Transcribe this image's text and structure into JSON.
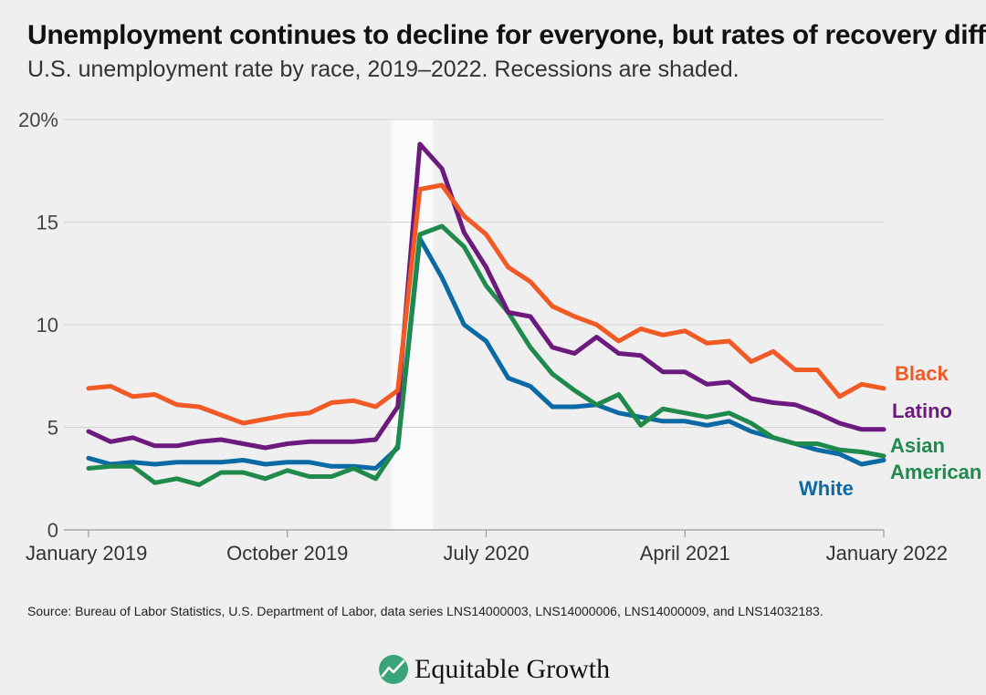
{
  "header": {
    "title": "Unemployment continues to decline for everyone, but rates of recovery differ",
    "subtitle": "U.S. unemployment rate by race, 2019–2022. Recessions are shaded."
  },
  "footer": {
    "source": "Source: Bureau of Labor Statistics, U.S. Department of Labor, data series LNS14000003, LNS14000006, LNS14000009, and LNS14032183.",
    "logo_text": "Equitable Growth"
  },
  "colors": {
    "Black": "#f15a24",
    "Latino": "#6d1a7e",
    "Asian American": "#1f8a4c",
    "White": "#0b69a3",
    "recession": "#fafafa",
    "grid": "#d2d2d2",
    "logo": "#3aa37a"
  },
  "chart_data": {
    "type": "line",
    "title": "Unemployment continues to decline for everyone, but rates of recovery differ",
    "xlabel": "",
    "ylabel": "",
    "ylim": [
      0,
      20
    ],
    "yticks": [
      0,
      5,
      10,
      15,
      20
    ],
    "ytick_labels": [
      "0",
      "5",
      "10",
      "15",
      "20%"
    ],
    "x_start": "January 2019",
    "x_count": 37,
    "xticks": [
      {
        "index": 0,
        "label": "January 2019"
      },
      {
        "index": 9,
        "label": "October 2019"
      },
      {
        "index": 18,
        "label": "July 2020"
      },
      {
        "index": 27,
        "label": "April 2021"
      },
      {
        "index": 36,
        "label": "January 2022"
      }
    ],
    "recession": {
      "start_index": 13.7,
      "end_index": 15.6
    },
    "grid": true,
    "series": [
      {
        "name": "Black",
        "label": "Black",
        "values": [
          6.9,
          7.0,
          6.5,
          6.6,
          6.1,
          6.0,
          5.6,
          5.2,
          5.4,
          5.6,
          5.7,
          6.2,
          6.3,
          6.0,
          6.8,
          16.6,
          16.8,
          15.3,
          14.4,
          12.8,
          12.1,
          10.9,
          10.4,
          10.0,
          9.2,
          9.8,
          9.5,
          9.7,
          9.1,
          9.2,
          8.2,
          8.7,
          7.8,
          7.8,
          6.5,
          7.1,
          6.9
        ]
      },
      {
        "name": "Latino",
        "label": "Latino",
        "values": [
          4.8,
          4.3,
          4.5,
          4.1,
          4.1,
          4.3,
          4.4,
          4.2,
          4.0,
          4.2,
          4.3,
          4.3,
          4.3,
          4.4,
          6.0,
          18.8,
          17.6,
          14.5,
          12.8,
          10.6,
          10.4,
          8.9,
          8.6,
          9.4,
          8.6,
          8.5,
          7.7,
          7.7,
          7.1,
          7.2,
          6.4,
          6.2,
          6.1,
          5.7,
          5.2,
          4.9,
          4.9
        ]
      },
      {
        "name": "Asian American",
        "label": "Asian American",
        "values": [
          3.0,
          3.1,
          3.1,
          2.3,
          2.5,
          2.2,
          2.8,
          2.8,
          2.5,
          2.9,
          2.6,
          2.6,
          3.0,
          2.5,
          4.1,
          14.4,
          14.8,
          13.8,
          11.9,
          10.6,
          8.9,
          7.6,
          6.8,
          6.1,
          6.6,
          5.1,
          5.9,
          5.7,
          5.5,
          5.7,
          5.2,
          4.5,
          4.2,
          4.2,
          3.9,
          3.8,
          3.6
        ]
      },
      {
        "name": "White",
        "label": "White",
        "values": [
          3.5,
          3.2,
          3.3,
          3.2,
          3.3,
          3.3,
          3.3,
          3.4,
          3.2,
          3.3,
          3.3,
          3.1,
          3.1,
          3.0,
          4.0,
          14.2,
          12.3,
          10.0,
          9.2,
          7.4,
          7.0,
          6.0,
          6.0,
          6.1,
          5.7,
          5.5,
          5.3,
          5.3,
          5.1,
          5.3,
          4.8,
          4.5,
          4.2,
          3.9,
          3.7,
          3.2,
          3.4
        ]
      }
    ]
  }
}
